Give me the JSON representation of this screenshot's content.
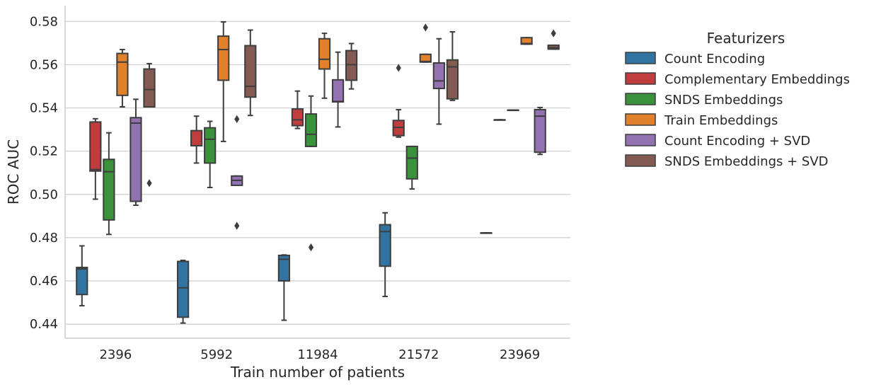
{
  "chart_data": {
    "type": "box",
    "xlabel": "Train number of patients",
    "ylabel": "ROC AUC",
    "ylim": [
      0.4335,
      0.5873
    ],
    "yticks": [
      0.44,
      0.46,
      0.48,
      0.5,
      0.52,
      0.54,
      0.56,
      0.58
    ],
    "ytick_labels": [
      "0.44",
      "0.46",
      "0.48",
      "0.50",
      "0.52",
      "0.54",
      "0.56",
      "0.58"
    ],
    "grid": "horizontal",
    "categories": [
      "2396",
      "5992",
      "11984",
      "21572",
      "23969"
    ],
    "legend": {
      "title": "Featurizers",
      "placement": "right"
    },
    "series": [
      {
        "name": "Count Encoding",
        "color": "#3274a1",
        "boxes": [
          {
            "whislo": 0.4485,
            "q1": 0.4537,
            "med": 0.4655,
            "q3": 0.4662,
            "whishi": 0.4762,
            "fliers": []
          },
          {
            "whislo": 0.4405,
            "q1": 0.4432,
            "med": 0.4568,
            "q3": 0.469,
            "whishi": 0.4695,
            "fliers": []
          },
          {
            "whislo": 0.4418,
            "q1": 0.46,
            "med": 0.47,
            "q3": 0.4718,
            "whishi": 0.472,
            "fliers": []
          },
          {
            "whislo": 0.4528,
            "q1": 0.4668,
            "med": 0.4828,
            "q3": 0.486,
            "whishi": 0.4915,
            "fliers": []
          },
          {
            "whislo": 0.4822,
            "q1": 0.4822,
            "med": 0.4822,
            "q3": 0.4822,
            "whishi": 0.4822,
            "fliers": []
          }
        ]
      },
      {
        "name": "Complementary Embeddings",
        "color": "#c03d3e",
        "boxes": [
          {
            "whislo": 0.4978,
            "q1": 0.5108,
            "med": 0.5115,
            "q3": 0.5335,
            "whishi": 0.535,
            "fliers": []
          },
          {
            "whislo": 0.5145,
            "q1": 0.5225,
            "med": 0.5225,
            "q3": 0.5295,
            "whishi": 0.5362,
            "fliers": []
          },
          {
            "whislo": 0.5305,
            "q1": 0.5318,
            "med": 0.5345,
            "q3": 0.5395,
            "whishi": 0.5478,
            "fliers": []
          },
          {
            "whislo": 0.5265,
            "q1": 0.5272,
            "med": 0.531,
            "q3": 0.5342,
            "whishi": 0.5392,
            "fliers": [
              0.5585
            ]
          },
          {
            "whislo": 0.5345,
            "q1": 0.5345,
            "med": 0.5345,
            "q3": 0.5345,
            "whishi": 0.5345,
            "fliers": []
          }
        ]
      },
      {
        "name": "SNDS Embeddings",
        "color": "#3a923a",
        "boxes": [
          {
            "whislo": 0.4815,
            "q1": 0.4882,
            "med": 0.5105,
            "q3": 0.5162,
            "whishi": 0.5285,
            "fliers": []
          },
          {
            "whislo": 0.5032,
            "q1": 0.5145,
            "med": 0.5255,
            "q3": 0.5308,
            "whishi": 0.5338,
            "fliers": []
          },
          {
            "whislo": 0.5222,
            "q1": 0.5222,
            "med": 0.5278,
            "q3": 0.5372,
            "whishi": 0.5455,
            "fliers": [
              0.4755
            ]
          },
          {
            "whislo": 0.5025,
            "q1": 0.5072,
            "med": 0.5168,
            "q3": 0.5222,
            "whishi": 0.5222,
            "fliers": []
          },
          {
            "whislo": 0.539,
            "q1": 0.539,
            "med": 0.539,
            "q3": 0.539,
            "whishi": 0.539,
            "fliers": []
          }
        ]
      },
      {
        "name": "Train Embeddings",
        "color": "#e1812c",
        "boxes": [
          {
            "whislo": 0.5405,
            "q1": 0.5458,
            "med": 0.5612,
            "q3": 0.5652,
            "whishi": 0.567,
            "fliers": []
          },
          {
            "whislo": 0.5245,
            "q1": 0.5528,
            "med": 0.567,
            "q3": 0.5732,
            "whishi": 0.5798,
            "fliers": []
          },
          {
            "whislo": 0.5445,
            "q1": 0.558,
            "med": 0.5625,
            "q3": 0.572,
            "whishi": 0.5745,
            "fliers": []
          },
          {
            "whislo": 0.5612,
            "q1": 0.5612,
            "med": 0.5615,
            "q3": 0.5648,
            "whishi": 0.5648,
            "fliers": [
              0.5772
            ]
          },
          {
            "whislo": 0.5695,
            "q1": 0.5695,
            "med": 0.5698,
            "q3": 0.5725,
            "whishi": 0.5725,
            "fliers": []
          }
        ]
      },
      {
        "name": "Count Encoding + SVD",
        "color": "#9372b2",
        "boxes": [
          {
            "whislo": 0.495,
            "q1": 0.4968,
            "med": 0.533,
            "q3": 0.5355,
            "whishi": 0.544,
            "fliers": []
          },
          {
            "whislo": 0.5042,
            "q1": 0.5042,
            "med": 0.5065,
            "q3": 0.5085,
            "whishi": 0.5085,
            "fliers": [
              0.4855,
              0.5348
            ]
          },
          {
            "whislo": 0.5312,
            "q1": 0.5428,
            "med": 0.543,
            "q3": 0.553,
            "whishi": 0.5658,
            "fliers": []
          },
          {
            "whislo": 0.5325,
            "q1": 0.549,
            "med": 0.5525,
            "q3": 0.5608,
            "whishi": 0.572,
            "fliers": []
          },
          {
            "whislo": 0.5185,
            "q1": 0.5195,
            "med": 0.5362,
            "q3": 0.5392,
            "whishi": 0.5402,
            "fliers": []
          }
        ]
      },
      {
        "name": "SNDS Embeddings + SVD",
        "color": "#845b53",
        "boxes": [
          {
            "whislo": 0.5405,
            "q1": 0.5405,
            "med": 0.5485,
            "q3": 0.558,
            "whishi": 0.5605,
            "fliers": [
              0.5052
            ]
          },
          {
            "whislo": 0.5365,
            "q1": 0.545,
            "med": 0.55,
            "q3": 0.5688,
            "whishi": 0.576,
            "fliers": []
          },
          {
            "whislo": 0.5488,
            "q1": 0.5528,
            "med": 0.56,
            "q3": 0.5665,
            "whishi": 0.5698,
            "fliers": []
          },
          {
            "whislo": 0.5435,
            "q1": 0.5442,
            "med": 0.559,
            "q3": 0.5622,
            "whishi": 0.5752,
            "fliers": []
          },
          {
            "whislo": 0.5672,
            "q1": 0.5672,
            "med": 0.5678,
            "q3": 0.569,
            "whishi": 0.569,
            "fliers": [
              0.5745
            ]
          }
        ]
      }
    ]
  }
}
